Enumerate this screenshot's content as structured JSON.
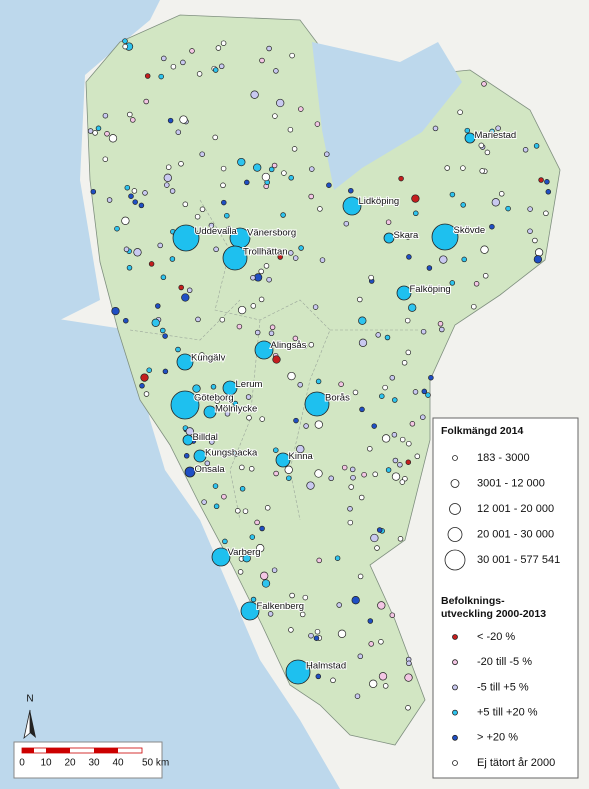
{
  "map": {
    "cities": [
      "Uddevalla",
      "Vänersborg",
      "Trollhättan",
      "Lidköping",
      "Skara",
      "Skövde",
      "Mariestad",
      "Falköping",
      "Alingsås",
      "Kungälv",
      "Lerum",
      "Göteborg",
      "Mölnlycke",
      "Borås",
      "Billdal",
      "Kungsbacka",
      "Onsala",
      "Kinna",
      "Varberg",
      "Falkenberg",
      "Halmstad"
    ],
    "north": "N",
    "scale": [
      "0",
      "10",
      "20",
      "30",
      "40",
      "50 km"
    ]
  },
  "legend": {
    "size_title": "Folkmängd 2014",
    "sizes": [
      "183 - 3000",
      "3001 - 12 000",
      "12 001 - 20 000",
      "20 001 - 30 000",
      "30 001 - 577 541"
    ],
    "change_title": [
      "Befolknings-",
      "utveckling 2000-2013"
    ],
    "changes": [
      "< -20 %",
      "-20 till -5 %",
      "-5 till +5 %",
      "+5 till +20 %",
      "> +20 %",
      "Ej tätort år 2000"
    ]
  }
}
